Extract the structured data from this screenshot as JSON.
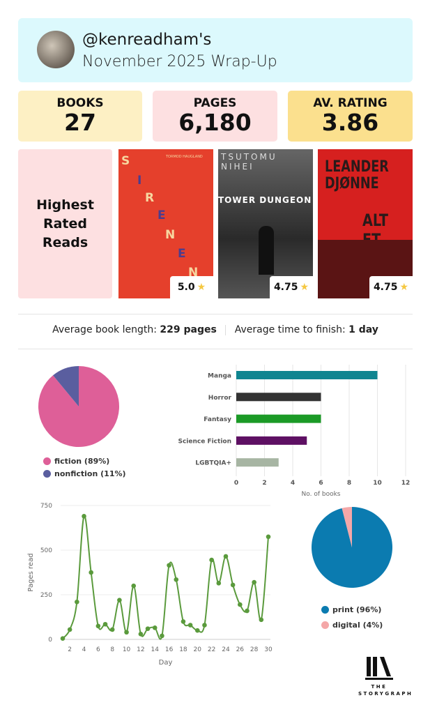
{
  "header": {
    "username": "@kenreadham's",
    "title": "November 2025 Wrap-Up"
  },
  "stats": [
    {
      "label": "BOOKS",
      "value": "27",
      "color": "#fdf0c4"
    },
    {
      "label": "PAGES",
      "value": "6,180",
      "color": "#fde0e1"
    },
    {
      "label": "AV. RATING",
      "value": "3.86",
      "color": "#fbe08e"
    }
  ],
  "highest_rated": {
    "label": "Highest Rated Reads",
    "books": [
      {
        "cover_text": "SIRENEN",
        "author": "TORMOD HAUGLAND",
        "rating": "5.0"
      },
      {
        "cover_text": "TOWER DUNGEON 3",
        "author": "TSUTOMU NIHEI",
        "rating": "4.75"
      },
      {
        "cover_text": "ALT ET",
        "author": "LEANDER DJØNNE",
        "rating": "4.75"
      }
    ]
  },
  "averages": {
    "length_label": "Average book length:",
    "length_value": "229 pages",
    "time_label": "Average time to finish:",
    "time_value": "1 day"
  },
  "chart_data": [
    {
      "type": "pie",
      "slices": [
        {
          "label": "fiction (89%)",
          "value": 89,
          "color": "#de5f98"
        },
        {
          "label": "nonfiction (11%)",
          "value": 11,
          "color": "#5a5e9f"
        }
      ],
      "legend": "bottom"
    },
    {
      "type": "bar",
      "orientation": "horizontal",
      "categories": [
        "Manga",
        "Horror",
        "Fantasy",
        "Science Fiction",
        "LGBTQIA+"
      ],
      "values": [
        10,
        6,
        6,
        5,
        3
      ],
      "colors": [
        "#0f8590",
        "#333333",
        "#1b9a26",
        "#5e1063",
        "#a7b5a3"
      ],
      "xlabel": "No. of books",
      "xlim": [
        0,
        12
      ],
      "xticks": [
        0,
        2,
        4,
        6,
        8,
        10,
        12
      ],
      "grid": true
    },
    {
      "type": "line",
      "x": [
        1,
        2,
        3,
        4,
        5,
        6,
        7,
        8,
        9,
        10,
        11,
        12,
        13,
        14,
        15,
        16,
        17,
        18,
        19,
        20,
        21,
        22,
        23,
        24,
        25,
        26,
        27,
        28,
        29,
        30
      ],
      "y": [
        5,
        55,
        210,
        690,
        375,
        75,
        85,
        55,
        220,
        40,
        300,
        30,
        60,
        65,
        20,
        415,
        335,
        100,
        80,
        50,
        80,
        445,
        315,
        465,
        305,
        195,
        160,
        320,
        110,
        575
      ],
      "xlabel": "Day",
      "ylabel": "Pages read",
      "ylim": [
        0,
        750
      ],
      "yticks": [
        0,
        250,
        500,
        750
      ],
      "xticks": [
        2,
        4,
        6,
        8,
        10,
        12,
        14,
        16,
        18,
        20,
        22,
        24,
        26,
        28,
        30
      ],
      "color": "#5a9a3c",
      "grid": true
    },
    {
      "type": "pie",
      "slices": [
        {
          "label": "print (96%)",
          "value": 96,
          "color": "#0b7bb0"
        },
        {
          "label": "digital (4%)",
          "value": 4,
          "color": "#f4a7a8"
        }
      ],
      "legend": "bottom"
    }
  ],
  "logo": {
    "text": "THE STORYGRAPH"
  }
}
